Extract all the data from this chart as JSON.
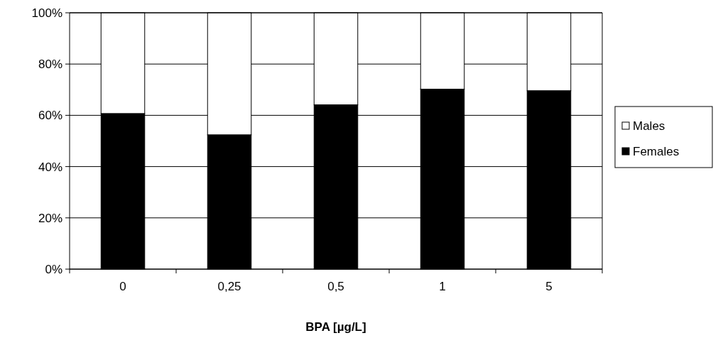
{
  "chart_data": {
    "type": "bar",
    "stacked": true,
    "xlabel": "BPA [µg/L]",
    "categories": [
      "0",
      "0,25",
      "0,5",
      "1",
      "5"
    ],
    "series": [
      {
        "name": "Females",
        "color": "#000000",
        "values": [
          60.7,
          52.4,
          64.1,
          70.2,
          69.6
        ]
      },
      {
        "name": "Males",
        "color": "#ffffff",
        "values": [
          39.3,
          47.6,
          35.9,
          29.8,
          30.4
        ]
      }
    ],
    "ylim": [
      0,
      100
    ],
    "yticks": [
      {
        "value": 0,
        "label": "0%"
      },
      {
        "value": 20,
        "label": "20%"
      },
      {
        "value": 40,
        "label": "40%"
      },
      {
        "value": 60,
        "label": "60%"
      },
      {
        "value": 80,
        "label": "80%"
      },
      {
        "value": 100,
        "label": "100%"
      }
    ],
    "grid": "y",
    "legend": "right"
  }
}
